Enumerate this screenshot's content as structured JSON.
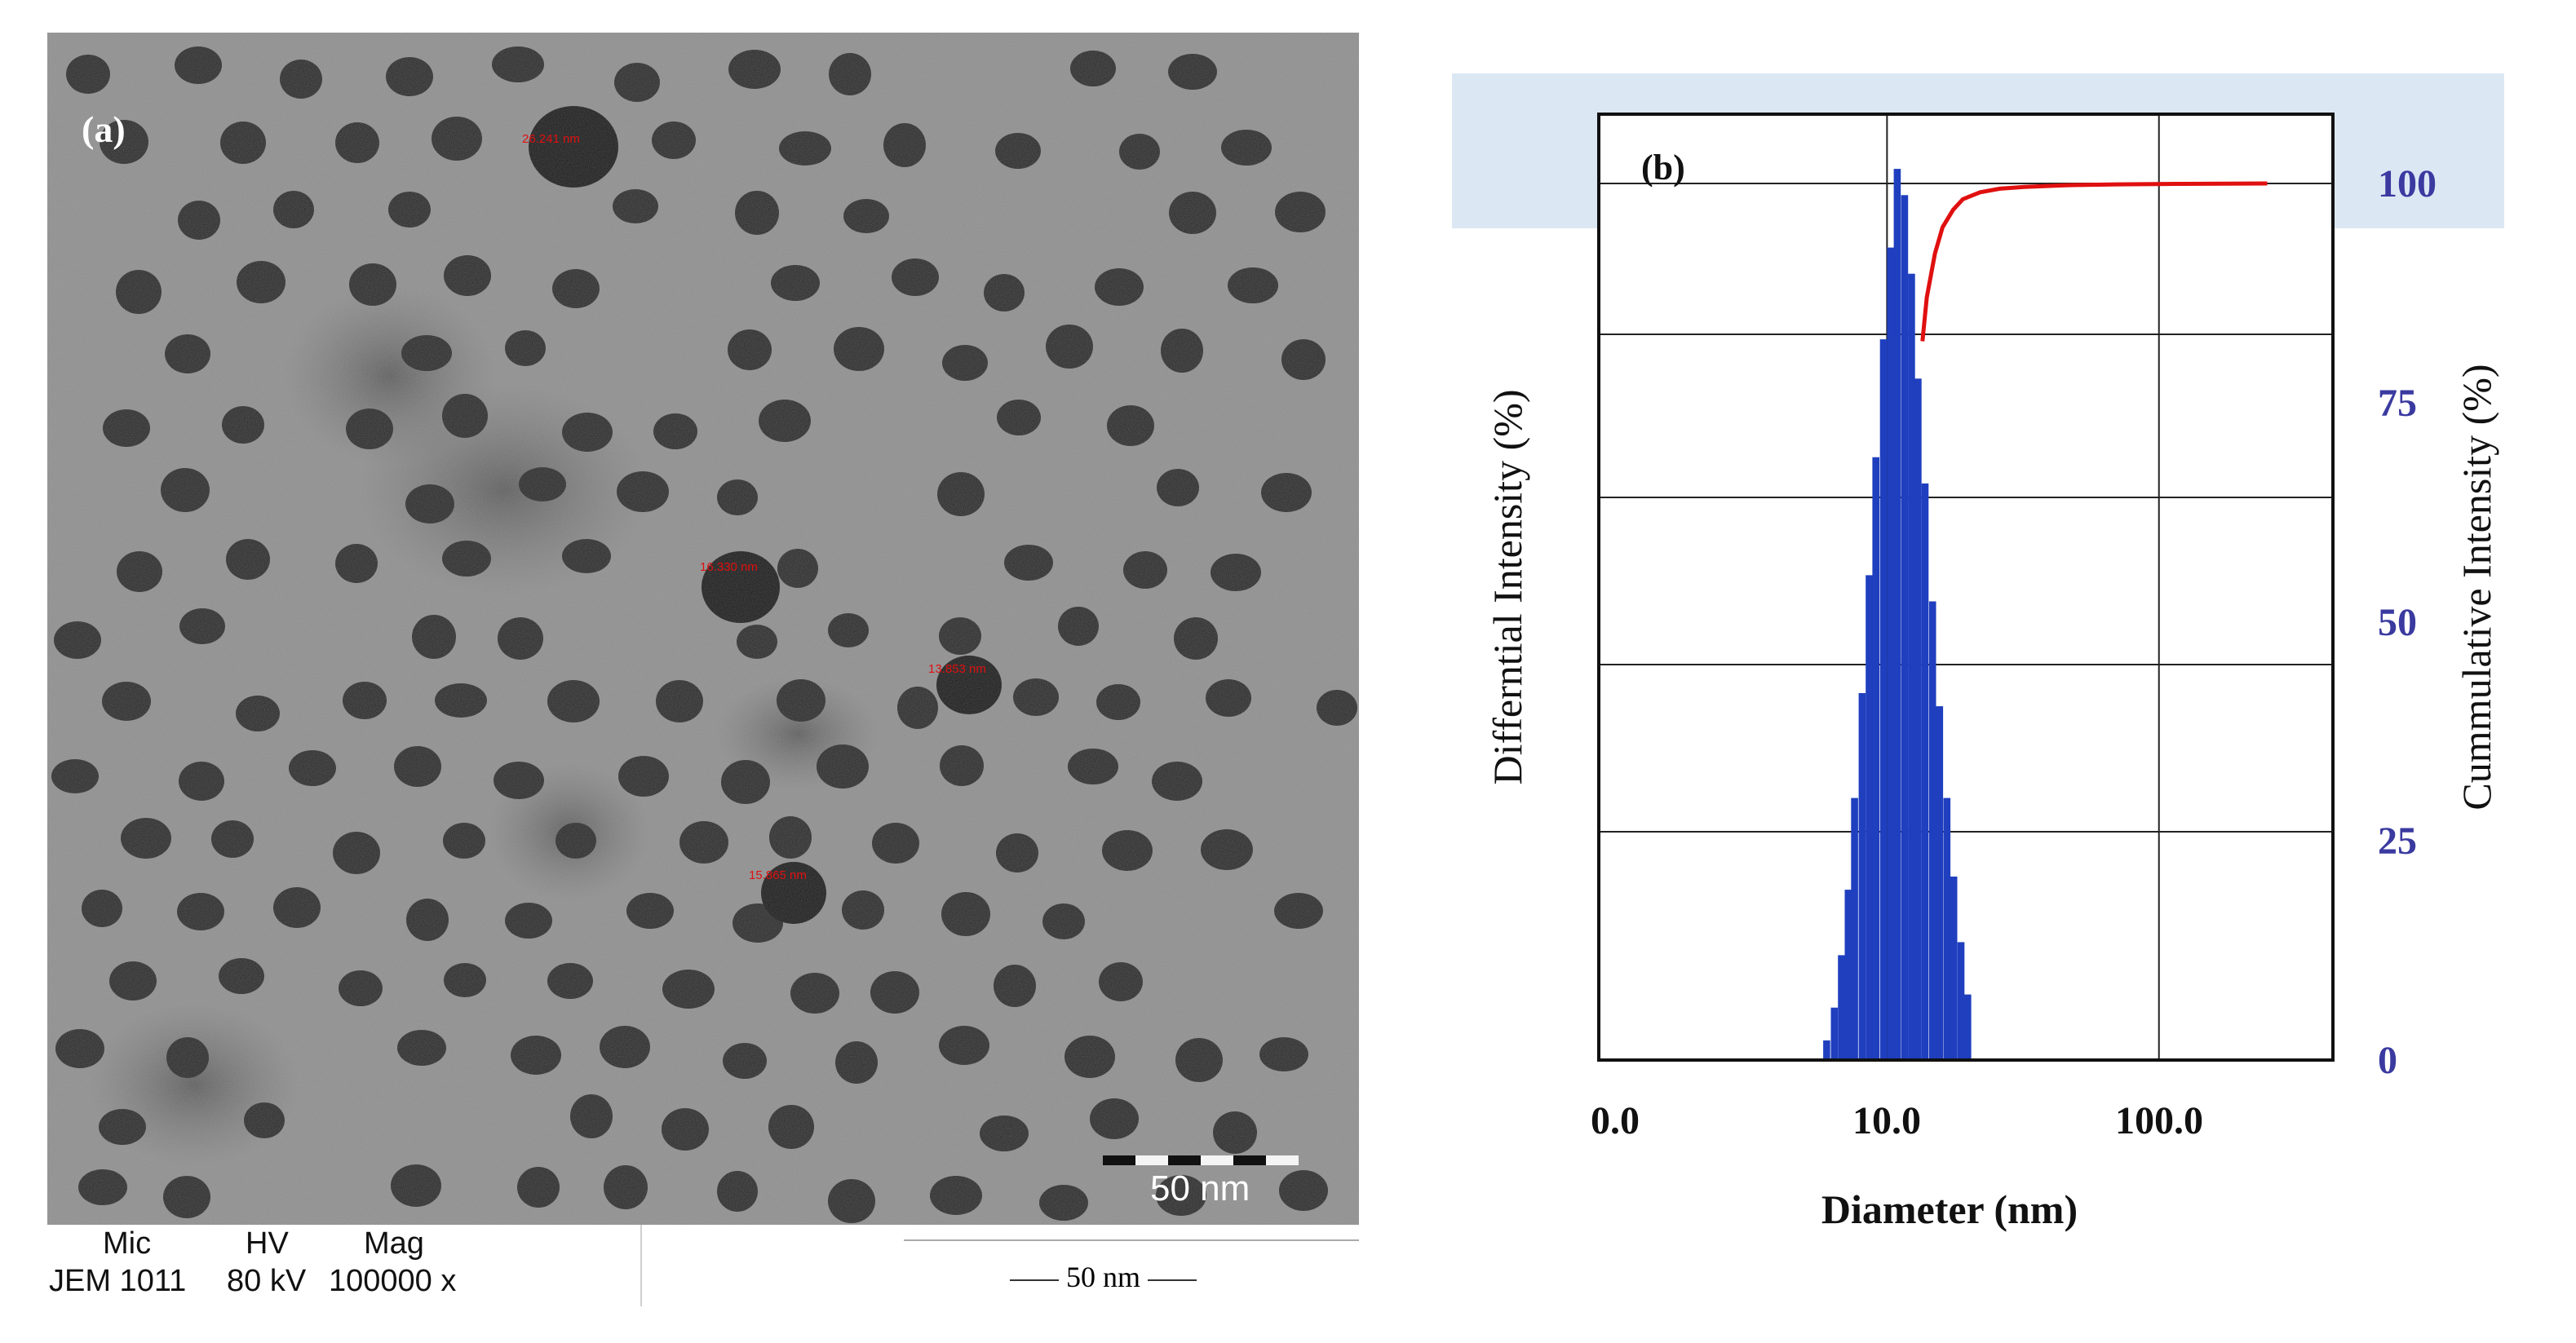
{
  "panel_a": {
    "label": "(a)",
    "measurements": [
      "26.241 nm",
      "16.330 nm",
      "13.853 nm",
      "15.865 nm"
    ],
    "scale_bar": "50 nm",
    "footer": {
      "headers": [
        "Mic",
        "HV",
        "Mag"
      ],
      "values": [
        "JEM 1011",
        "80 kV",
        "100000 x"
      ],
      "scale": "50 nm"
    }
  },
  "colors": {
    "bars": "#1f3fbf",
    "cumulative": "#e01010",
    "right_axis": "#3a3aa0",
    "header_band": "#dbe8f4"
  },
  "chart_data": {
    "type": "bar",
    "label": "(b)",
    "xlabel": "Diameter (nm)",
    "ylabel_left": "Differntial Intensity (%)",
    "ylabel_right": "Cummulative Intensity (%)",
    "x_scale": "log",
    "x_ticks": [
      "0.0",
      "10.0",
      "100.0"
    ],
    "right_ticks": [
      "0",
      "25",
      "50",
      "75",
      "100"
    ],
    "right_ylim": [
      0,
      100
    ],
    "grid": true,
    "histogram": {
      "name": "Differential intensity",
      "diameters_nm": [
        6.0,
        6.4,
        6.8,
        7.2,
        7.6,
        8.1,
        8.6,
        9.1,
        9.7,
        10.3,
        10.9,
        11.6,
        12.3,
        13.0,
        13.8,
        14.7,
        15.6,
        16.6,
        17.6,
        18.7,
        19.8
      ],
      "values_pct": [
        1.5,
        4,
        8,
        13,
        20,
        28,
        37,
        46,
        55,
        62,
        68,
        66,
        60,
        52,
        44,
        35,
        27,
        20,
        14,
        9,
        5
      ]
    },
    "cumulative": {
      "name": "Cumulative intensity",
      "diameters_nm": [
        13.5,
        14.0,
        15.0,
        16.0,
        17.5,
        19.0,
        22.0,
        26.0,
        32.0,
        45.0,
        70.0,
        120.0,
        250.0
      ],
      "values_pct": [
        82.0,
        87.0,
        92.0,
        95.0,
        97.0,
        98.2,
        99.0,
        99.4,
        99.6,
        99.8,
        99.9,
        99.95,
        100.0
      ]
    }
  }
}
